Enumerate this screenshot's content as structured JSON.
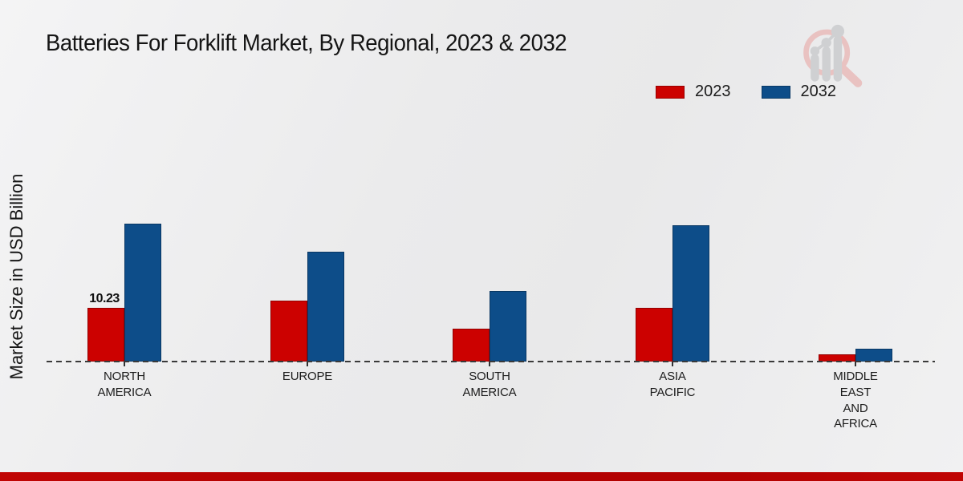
{
  "title": "Batteries For Forklift Market, By Regional, 2023 & 2032",
  "ylabel": "Market Size in USD Billion",
  "watermark_icon": "magnifier-chart-logo",
  "colors": {
    "series_2023": "#cc0100",
    "series_2032": "#0d4d89",
    "footer": "#b30101",
    "axis": "#333333",
    "watermark_ring": "#e9c2c1",
    "watermark_bars": "#cfd0d2"
  },
  "chart_data": {
    "type": "bar",
    "categories": [
      "NORTH AMERICA",
      "EUROPE",
      "SOUTH AMERICA",
      "ASIA PACIFIC",
      "MIDDLE EAST AND AFRICA"
    ],
    "categories_wrapped": [
      "NORTH\nAMERICA",
      "EUROPE",
      "SOUTH\nAMERICA",
      "ASIA\nPACIFIC",
      "MIDDLE\nEAST\nAND\nAFRICA"
    ],
    "series": [
      {
        "name": "2023",
        "color": "#cc0100",
        "values": [
          10.23,
          11.6,
          6.2,
          10.2,
          1.3
        ]
      },
      {
        "name": "2032",
        "color": "#0d4d89",
        "values": [
          26.2,
          20.9,
          13.4,
          26.0,
          2.5
        ]
      }
    ],
    "title": "Batteries For Forklift Market, By Regional, 2023 & 2032",
    "xlabel": "",
    "ylabel": "Market Size in USD Billion",
    "ylim": [
      0,
      30
    ],
    "grid": false,
    "y_axis_ticks_visible": false,
    "legend_position": "top-right",
    "data_labels": [
      {
        "series_index": 0,
        "category_index": 0,
        "text": "10.23"
      }
    ]
  }
}
